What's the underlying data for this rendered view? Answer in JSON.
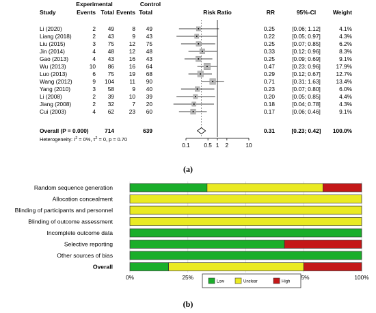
{
  "chart_data": [
    {
      "type": "forest",
      "caption": "(a)",
      "headers": {
        "study": "Study",
        "group1": "Experimental",
        "group2": "Control",
        "events1": "Events",
        "total1": "Total",
        "events2": "Events",
        "total2": "Total",
        "plot": "Risk Ratio",
        "rr": "RR",
        "ci": "95%-CI",
        "weight": "Weight"
      },
      "studies": [
        {
          "study": "Li (2020)",
          "events_e": "2",
          "total_e": "49",
          "events_c": "8",
          "total_c": "49",
          "rr": 0.25,
          "ci_low": 0.06,
          "ci_high": 1.12,
          "rr_text": "0.25",
          "ci_text": "[0.06; 1.12]",
          "weight_text": "4.1%",
          "weight": 4.1
        },
        {
          "study": "Liang (2018)",
          "events_e": "2",
          "total_e": "43",
          "events_c": "9",
          "total_c": "43",
          "rr": 0.22,
          "ci_low": 0.05,
          "ci_high": 0.97,
          "rr_text": "0.22",
          "ci_text": "[0.05; 0.97]",
          "weight_text": "4.3%",
          "weight": 4.3
        },
        {
          "study": "Liu (2015)",
          "events_e": "3",
          "total_e": "75",
          "events_c": "12",
          "total_c": "75",
          "rr": 0.25,
          "ci_low": 0.07,
          "ci_high": 0.85,
          "rr_text": "0.25",
          "ci_text": "[0.07; 0.85]",
          "weight_text": "6.2%",
          "weight": 6.2
        },
        {
          "study": "Jin (2014)",
          "events_e": "4",
          "total_e": "48",
          "events_c": "12",
          "total_c": "48",
          "rr": 0.33,
          "ci_low": 0.12,
          "ci_high": 0.96,
          "rr_text": "0.33",
          "ci_text": "[0.12; 0.96]",
          "weight_text": "8.3%",
          "weight": 8.3
        },
        {
          "study": "Gao (2013)",
          "events_e": "4",
          "total_e": "43",
          "events_c": "16",
          "total_c": "43",
          "rr": 0.25,
          "ci_low": 0.09,
          "ci_high": 0.69,
          "rr_text": "0.25",
          "ci_text": "[0.09; 0.69]",
          "weight_text": "9.1%",
          "weight": 9.1
        },
        {
          "study": "Wu (2013)",
          "events_e": "10",
          "total_e": "86",
          "events_c": "16",
          "total_c": "64",
          "rr": 0.47,
          "ci_low": 0.23,
          "ci_high": 0.96,
          "rr_text": "0.47",
          "ci_text": "[0.23; 0.96]",
          "weight_text": "17.9%",
          "weight": 17.9
        },
        {
          "study": "Luo (2013)",
          "events_e": "6",
          "total_e": "75",
          "events_c": "19",
          "total_c": "68",
          "rr": 0.29,
          "ci_low": 0.12,
          "ci_high": 0.67,
          "rr_text": "0.29",
          "ci_text": "[0.12; 0.67]",
          "weight_text": "12.7%",
          "weight": 12.7
        },
        {
          "study": "Wang (2012)",
          "events_e": "9",
          "total_e": "104",
          "events_c": "11",
          "total_c": "90",
          "rr": 0.71,
          "ci_low": 0.31,
          "ci_high": 1.63,
          "rr_text": "0.71",
          "ci_text": "[0.31; 1.63]",
          "weight_text": "13.4%",
          "weight": 13.4
        },
        {
          "study": "Yang (2010)",
          "events_e": "3",
          "total_e": "58",
          "events_c": "9",
          "total_c": "40",
          "rr": 0.23,
          "ci_low": 0.07,
          "ci_high": 0.8,
          "rr_text": "0.23",
          "ci_text": "[0.07; 0.80]",
          "weight_text": "6.0%",
          "weight": 6.0
        },
        {
          "study": "Li (2008)",
          "events_e": "2",
          "total_e": "39",
          "events_c": "10",
          "total_c": "39",
          "rr": 0.2,
          "ci_low": 0.05,
          "ci_high": 0.85,
          "rr_text": "0.20",
          "ci_text": "[0.05; 0.85]",
          "weight_text": "4.4%",
          "weight": 4.4
        },
        {
          "study": "Jiang (2008)",
          "events_e": "2",
          "total_e": "32",
          "events_c": "7",
          "total_c": "20",
          "rr": 0.18,
          "ci_low": 0.04,
          "ci_high": 0.78,
          "rr_text": "0.18",
          "ci_text": "[0.04; 0.78]",
          "weight_text": "4.3%",
          "weight": 4.3
        },
        {
          "study": "Cui (2003)",
          "events_e": "4",
          "total_e": "62",
          "events_c": "23",
          "total_c": "60",
          "rr": 0.17,
          "ci_low": 0.06,
          "ci_high": 0.46,
          "rr_text": "0.17",
          "ci_text": "[0.06; 0.46]",
          "weight_text": "9.1%",
          "weight": 9.1
        }
      ],
      "overall": {
        "label": "Overall (P = 0.000)",
        "total_e": "714",
        "total_c": "639",
        "rr": 0.31,
        "ci_low": 0.23,
        "ci_high": 0.42,
        "rr_text": "0.31",
        "ci_text": "[0.23; 0.42]",
        "weight_text": "100.0%"
      },
      "heterogeneity": {
        "prefix": "Heterogeneity: ",
        "i2": "I",
        "i2_sup": "2",
        "i2_val": " = 0%, ",
        "tau": "τ",
        "tau_sup": "2",
        "rest": " = 0, p = 0.70"
      },
      "x_ticks": [
        {
          "value": 0.1,
          "label": "0.1"
        },
        {
          "value": 0.5,
          "label": "0.5"
        },
        {
          "value": 1,
          "label": "1"
        },
        {
          "value": 2,
          "label": "2"
        },
        {
          "value": 10,
          "label": "10"
        }
      ],
      "x_scale": "log",
      "xlim": [
        0.1,
        10
      ]
    },
    {
      "type": "bar",
      "stacked": true,
      "orientation": "horizontal",
      "caption": "(b)",
      "categories": [
        "Random sequence generation",
        "Allocation concealment",
        "Blinding of participants and personnel",
        "Blinding of outcome assessment",
        "Incomplete outcome data",
        "Selective reporting",
        "Other sources of bias",
        "Overall"
      ],
      "bold_categories": [
        "Overall"
      ],
      "series": [
        {
          "name": "Low",
          "color": "#1aae2a",
          "values": [
            33.3,
            0,
            0,
            0,
            100,
            66.7,
            100,
            16.7
          ]
        },
        {
          "name": "Unclear",
          "color": "#eaea22",
          "values": [
            50,
            100,
            100,
            100,
            0,
            0,
            0,
            58.3
          ]
        },
        {
          "name": "High",
          "color": "#c41818",
          "values": [
            16.7,
            0,
            0,
            0,
            0,
            33.3,
            0,
            25
          ]
        }
      ],
      "x_ticks": [
        "0%",
        "25%",
        "50%",
        "75%",
        "100%"
      ],
      "xlim": [
        0,
        100
      ],
      "legend_position": "bottom"
    }
  ]
}
